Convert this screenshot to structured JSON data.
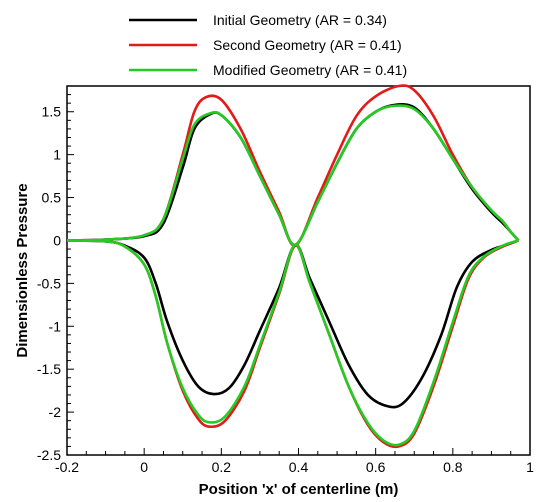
{
  "chart_data": {
    "type": "line",
    "title": "",
    "xlabel": "Position 'x' of centerline (m)",
    "ylabel": "Dimensionless Pressure",
    "xlim": [
      -0.2,
      1.0
    ],
    "ylim": [
      -2.5,
      1.8
    ],
    "x_ticks": [
      -0.2,
      0,
      0.2,
      0.4,
      0.6,
      0.8,
      1
    ],
    "y_ticks": [
      1.5,
      1,
      0.5,
      0,
      -0.5,
      -1,
      -1.5,
      -2,
      -2.5
    ],
    "x_tick_labels": [
      "-0.2",
      "0",
      "0.2",
      "0.4",
      "0.6",
      "0.8",
      "1"
    ],
    "y_tick_labels": [
      "1.5",
      "1",
      "0.5",
      "0",
      "-0.5",
      "-1",
      "-1.5",
      "-2",
      "-2.5"
    ],
    "legend_position": "top",
    "grid": false,
    "series": [
      {
        "name": "Initial Geometry (AR = 0.34)",
        "color": "#000000",
        "upper": [
          [
            -0.2,
            0
          ],
          [
            -0.1,
            0.01
          ],
          [
            0,
            0.05
          ],
          [
            0.05,
            0.2
          ],
          [
            0.1,
            0.85
          ],
          [
            0.13,
            1.3
          ],
          [
            0.17,
            1.47
          ],
          [
            0.2,
            1.46
          ],
          [
            0.25,
            1.2
          ],
          [
            0.3,
            0.75
          ],
          [
            0.35,
            0.3
          ],
          [
            0.392,
            -0.05
          ],
          [
            0.45,
            0.45
          ],
          [
            0.5,
            0.9
          ],
          [
            0.55,
            1.3
          ],
          [
            0.6,
            1.5
          ],
          [
            0.65,
            1.58
          ],
          [
            0.7,
            1.55
          ],
          [
            0.75,
            1.3
          ],
          [
            0.8,
            0.95
          ],
          [
            0.85,
            0.6
          ],
          [
            0.9,
            0.33
          ],
          [
            0.93,
            0.2
          ],
          [
            0.95,
            0.1
          ],
          [
            0.97,
            0
          ]
        ],
        "lower": [
          [
            -0.2,
            0
          ],
          [
            -0.1,
            -0.01
          ],
          [
            -0.05,
            -0.06
          ],
          [
            0,
            -0.2
          ],
          [
            0.03,
            -0.5
          ],
          [
            0.06,
            -0.95
          ],
          [
            0.1,
            -1.4
          ],
          [
            0.14,
            -1.7
          ],
          [
            0.18,
            -1.79
          ],
          [
            0.22,
            -1.72
          ],
          [
            0.26,
            -1.45
          ],
          [
            0.3,
            -1.05
          ],
          [
            0.35,
            -0.55
          ],
          [
            0.392,
            -0.05
          ],
          [
            0.43,
            -0.45
          ],
          [
            0.48,
            -0.95
          ],
          [
            0.53,
            -1.45
          ],
          [
            0.58,
            -1.8
          ],
          [
            0.63,
            -1.93
          ],
          [
            0.67,
            -1.9
          ],
          [
            0.72,
            -1.6
          ],
          [
            0.77,
            -1.1
          ],
          [
            0.81,
            -0.55
          ],
          [
            0.85,
            -0.25
          ],
          [
            0.9,
            -0.11
          ],
          [
            0.94,
            -0.05
          ],
          [
            0.97,
            0
          ]
        ]
      },
      {
        "name": "Second Geometry (AR = 0.41)",
        "color": "#e21a1a",
        "upper": [
          [
            -0.2,
            0
          ],
          [
            -0.1,
            0.01
          ],
          [
            0,
            0.06
          ],
          [
            0.05,
            0.25
          ],
          [
            0.1,
            1.0
          ],
          [
            0.13,
            1.5
          ],
          [
            0.16,
            1.67
          ],
          [
            0.2,
            1.64
          ],
          [
            0.25,
            1.3
          ],
          [
            0.3,
            0.8
          ],
          [
            0.35,
            0.33
          ],
          [
            0.392,
            -0.06
          ],
          [
            0.45,
            0.5
          ],
          [
            0.5,
            1.0
          ],
          [
            0.55,
            1.45
          ],
          [
            0.6,
            1.68
          ],
          [
            0.66,
            1.8
          ],
          [
            0.7,
            1.75
          ],
          [
            0.75,
            1.45
          ],
          [
            0.8,
            1.0
          ],
          [
            0.85,
            0.62
          ],
          [
            0.9,
            0.35
          ],
          [
            0.93,
            0.22
          ],
          [
            0.95,
            0.1
          ],
          [
            0.97,
            0
          ]
        ],
        "lower": [
          [
            -0.2,
            0
          ],
          [
            -0.1,
            -0.01
          ],
          [
            -0.05,
            -0.07
          ],
          [
            0,
            -0.28
          ],
          [
            0.03,
            -0.65
          ],
          [
            0.06,
            -1.2
          ],
          [
            0.1,
            -1.75
          ],
          [
            0.14,
            -2.08
          ],
          [
            0.17,
            -2.17
          ],
          [
            0.21,
            -2.1
          ],
          [
            0.26,
            -1.75
          ],
          [
            0.3,
            -1.25
          ],
          [
            0.35,
            -0.62
          ],
          [
            0.392,
            -0.06
          ],
          [
            0.43,
            -0.5
          ],
          [
            0.48,
            -1.1
          ],
          [
            0.53,
            -1.7
          ],
          [
            0.58,
            -2.15
          ],
          [
            0.62,
            -2.35
          ],
          [
            0.66,
            -2.4
          ],
          [
            0.7,
            -2.25
          ],
          [
            0.75,
            -1.7
          ],
          [
            0.8,
            -1.0
          ],
          [
            0.84,
            -0.45
          ],
          [
            0.88,
            -0.2
          ],
          [
            0.93,
            -0.07
          ],
          [
            0.97,
            0
          ]
        ]
      },
      {
        "name": "Modified Geometry (AR = 0.41)",
        "color": "#22cc22",
        "upper": [
          [
            -0.2,
            0
          ],
          [
            -0.1,
            0.01
          ],
          [
            0,
            0.06
          ],
          [
            0.05,
            0.25
          ],
          [
            0.1,
            0.95
          ],
          [
            0.13,
            1.35
          ],
          [
            0.17,
            1.48
          ],
          [
            0.2,
            1.46
          ],
          [
            0.25,
            1.2
          ],
          [
            0.3,
            0.75
          ],
          [
            0.35,
            0.3
          ],
          [
            0.392,
            -0.05
          ],
          [
            0.45,
            0.45
          ],
          [
            0.5,
            0.9
          ],
          [
            0.55,
            1.3
          ],
          [
            0.6,
            1.5
          ],
          [
            0.65,
            1.57
          ],
          [
            0.7,
            1.53
          ],
          [
            0.75,
            1.3
          ],
          [
            0.8,
            0.95
          ],
          [
            0.85,
            0.62
          ],
          [
            0.9,
            0.35
          ],
          [
            0.93,
            0.22
          ],
          [
            0.95,
            0.1
          ],
          [
            0.97,
            0
          ]
        ],
        "lower": [
          [
            -0.2,
            0
          ],
          [
            -0.1,
            -0.01
          ],
          [
            -0.05,
            -0.07
          ],
          [
            0,
            -0.28
          ],
          [
            0.03,
            -0.65
          ],
          [
            0.06,
            -1.2
          ],
          [
            0.1,
            -1.72
          ],
          [
            0.14,
            -2.03
          ],
          [
            0.17,
            -2.12
          ],
          [
            0.21,
            -2.05
          ],
          [
            0.26,
            -1.7
          ],
          [
            0.3,
            -1.22
          ],
          [
            0.35,
            -0.6
          ],
          [
            0.392,
            -0.05
          ],
          [
            0.43,
            -0.5
          ],
          [
            0.48,
            -1.1
          ],
          [
            0.53,
            -1.7
          ],
          [
            0.58,
            -2.13
          ],
          [
            0.62,
            -2.33
          ],
          [
            0.66,
            -2.38
          ],
          [
            0.7,
            -2.22
          ],
          [
            0.75,
            -1.65
          ],
          [
            0.8,
            -0.95
          ],
          [
            0.84,
            -0.42
          ],
          [
            0.88,
            -0.19
          ],
          [
            0.93,
            -0.06
          ],
          [
            0.97,
            0
          ]
        ]
      }
    ]
  }
}
